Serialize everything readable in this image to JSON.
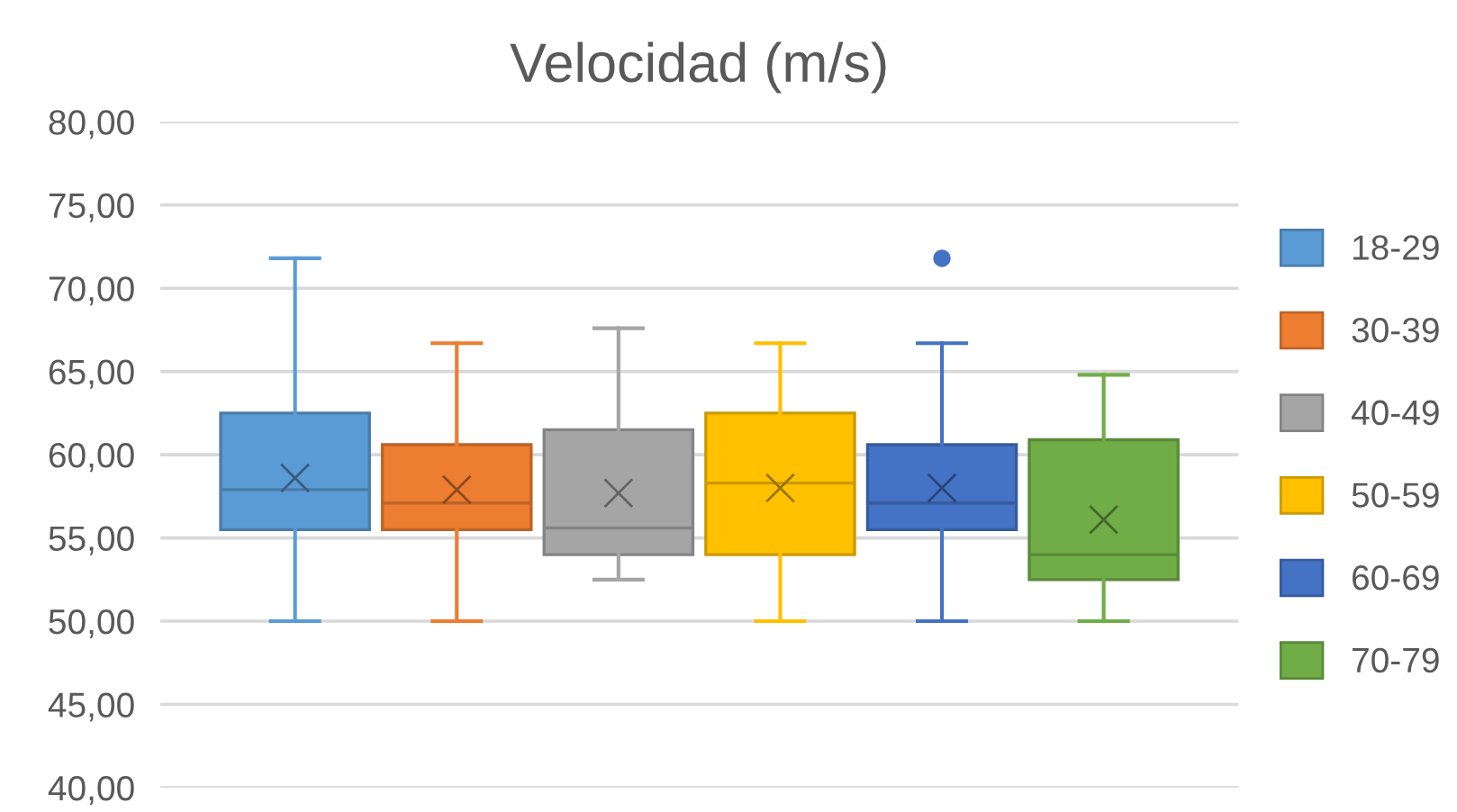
{
  "chart_data": {
    "type": "box",
    "title": "Velocidad (m/s)",
    "categories": [
      null
    ],
    "ylim": [
      40,
      80
    ],
    "yticks": [
      {
        "value": 40,
        "label": "40,00"
      },
      {
        "value": 45,
        "label": "45,00"
      },
      {
        "value": 50,
        "label": "50,00"
      },
      {
        "value": 55,
        "label": "55,00"
      },
      {
        "value": 60,
        "label": "60,00"
      },
      {
        "value": 65,
        "label": "65,00"
      },
      {
        "value": 70,
        "label": "70,00"
      },
      {
        "value": 75,
        "label": "75,00"
      },
      {
        "value": 80,
        "label": "80,00"
      }
    ],
    "grid": "y",
    "legend": "right",
    "series": [
      {
        "name": "18-29",
        "color": "#5b9bd5",
        "boxes": [
          {
            "low": 50,
            "q1": 55.5,
            "median": 57.9,
            "q3": 62.5,
            "high": 71.8,
            "mean": 58.6
          }
        ]
      },
      {
        "name": "30-39",
        "color": "#ed7d31",
        "boxes": [
          {
            "low": 50,
            "q1": 55.5,
            "median": 57.1,
            "q3": 60.6,
            "high": 66.7,
            "mean": 57.9
          }
        ]
      },
      {
        "name": "40-49",
        "color": "#a5a5a5",
        "boxes": [
          {
            "low": 52.5,
            "q1": 54.0,
            "median": 55.6,
            "q3": 61.5,
            "high": 67.6,
            "mean": 57.7
          }
        ]
      },
      {
        "name": "50-59",
        "color": "#ffc000",
        "boxes": [
          {
            "low": 50,
            "q1": 54.0,
            "median": 58.3,
            "q3": 62.5,
            "high": 66.7,
            "mean": 58.0
          }
        ]
      },
      {
        "name": "60-69",
        "color": "#4472c4",
        "boxes": [
          {
            "low": 50,
            "q1": 55.5,
            "median": 57.1,
            "q3": 60.6,
            "high": 66.7,
            "mean": 58.0,
            "outliers": [
              71.8
            ]
          }
        ]
      },
      {
        "name": "70-79",
        "color": "#70ad47",
        "boxes": [
          {
            "low": 50,
            "q1": 52.5,
            "median": 54.0,
            "q3": 60.9,
            "high": 64.8,
            "mean": 56.1
          }
        ]
      }
    ]
  }
}
